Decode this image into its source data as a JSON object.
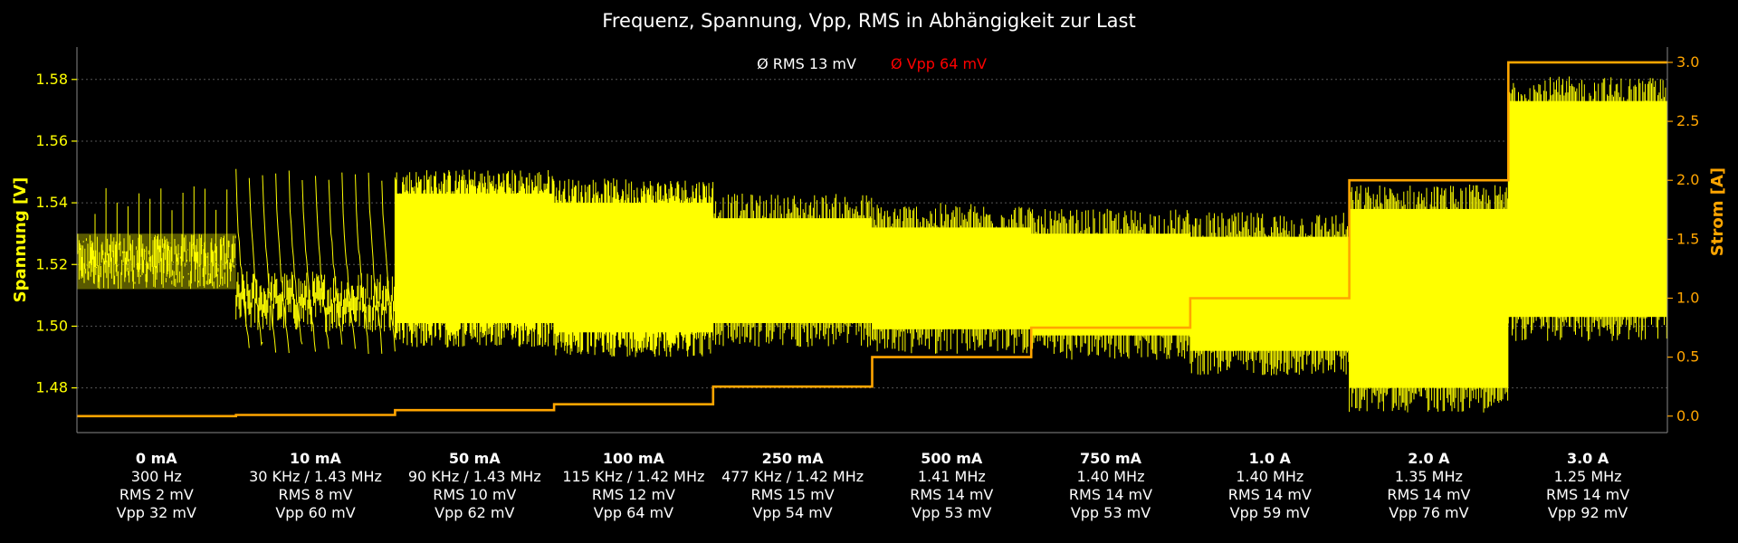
{
  "chart_data": {
    "type": "line",
    "title": "Frequenz, Spannung, Vpp, RMS in Abhängigkeit zur Last",
    "ylabel": "Spannung [V]",
    "y2label": "Strom [A]",
    "ylim": [
      1.4655,
      1.5905
    ],
    "yticks": [
      "1.48",
      "1.50",
      "1.52",
      "1.54",
      "1.56",
      "1.58"
    ],
    "y2lim": [
      -0.14,
      3.13
    ],
    "y2ticks": [
      "0.0",
      "0.5",
      "1.0",
      "1.5",
      "2.0",
      "2.5",
      "3.0"
    ],
    "grid": true,
    "annotations": {
      "avg_rms": "Ø RMS 13 mV",
      "avg_vpp": "Ø Vpp 64 mV"
    },
    "colors": {
      "background": "#000000",
      "voltage": "#ffff00",
      "current": "#ffa500",
      "vpp": "#ff0000",
      "text": "#ffffff",
      "axis": "#808080"
    },
    "segments": [
      {
        "load": "0 mA",
        "freq": "300 Hz",
        "rms": "RMS 2 mV",
        "vpp": "Vpp 32 mV",
        "current_a": 0.0,
        "v_low": 1.512,
        "v_high": 1.53,
        "spike_top": 1.546,
        "style": "idle"
      },
      {
        "load": "10 mA",
        "freq": "30 KHz / 1.43 MHz",
        "rms": "RMS 8 mV",
        "vpp": "Vpp 60 mV",
        "current_a": 0.01,
        "v_low": 1.493,
        "v_high": 1.523,
        "spike_top": 1.551,
        "style": "sawtooth"
      },
      {
        "load": "50 mA",
        "freq": "90 KHz / 1.43 MHz",
        "rms": "RMS 10 mV",
        "vpp": "Vpp 62 mV",
        "current_a": 0.05,
        "v_low": 1.495,
        "v_high": 1.549,
        "spike_top": 1.552,
        "style": "dense"
      },
      {
        "load": "100 mA",
        "freq": "115 KHz / 1.42 MHz",
        "rms": "RMS 12 mV",
        "vpp": "Vpp 64 mV",
        "current_a": 0.1,
        "v_low": 1.492,
        "v_high": 1.546,
        "spike_top": 1.55,
        "style": "dense"
      },
      {
        "load": "250 mA",
        "freq": "477 KHz / 1.42 MHz",
        "rms": "RMS 15 mV",
        "vpp": "Vpp 54 mV",
        "current_a": 0.25,
        "v_low": 1.495,
        "v_high": 1.541,
        "spike_top": 1.543,
        "style": "block"
      },
      {
        "load": "500 mA",
        "freq": "1.41 MHz",
        "rms": "RMS 14 mV",
        "vpp": "Vpp 53 mV",
        "current_a": 0.5,
        "v_low": 1.493,
        "v_high": 1.538,
        "spike_top": 1.54,
        "style": "block"
      },
      {
        "load": "750 mA",
        "freq": "1.40 MHz",
        "rms": "RMS 14 mV",
        "vpp": "Vpp 53 mV",
        "current_a": 0.75,
        "v_low": 1.491,
        "v_high": 1.536,
        "spike_top": 1.538,
        "style": "block"
      },
      {
        "load": "1.0 A",
        "freq": "1.40 MHz",
        "rms": "RMS 14 mV",
        "vpp": "Vpp 59 mV",
        "current_a": 1.0,
        "v_low": 1.486,
        "v_high": 1.535,
        "spike_top": 1.538,
        "style": "block"
      },
      {
        "load": "2.0 A",
        "freq": "1.35 MHz",
        "rms": "RMS 14 mV",
        "vpp": "Vpp 76 mV",
        "current_a": 2.0,
        "v_low": 1.474,
        "v_high": 1.544,
        "spike_top": 1.546,
        "style": "block"
      },
      {
        "load": "3.0 A",
        "freq": "1.25 MHz",
        "rms": "RMS 14 mV",
        "vpp": "Vpp 92 mV",
        "current_a": 3.0,
        "v_low": 1.497,
        "v_high": 1.579,
        "spike_top": 1.582,
        "style": "block"
      }
    ]
  }
}
